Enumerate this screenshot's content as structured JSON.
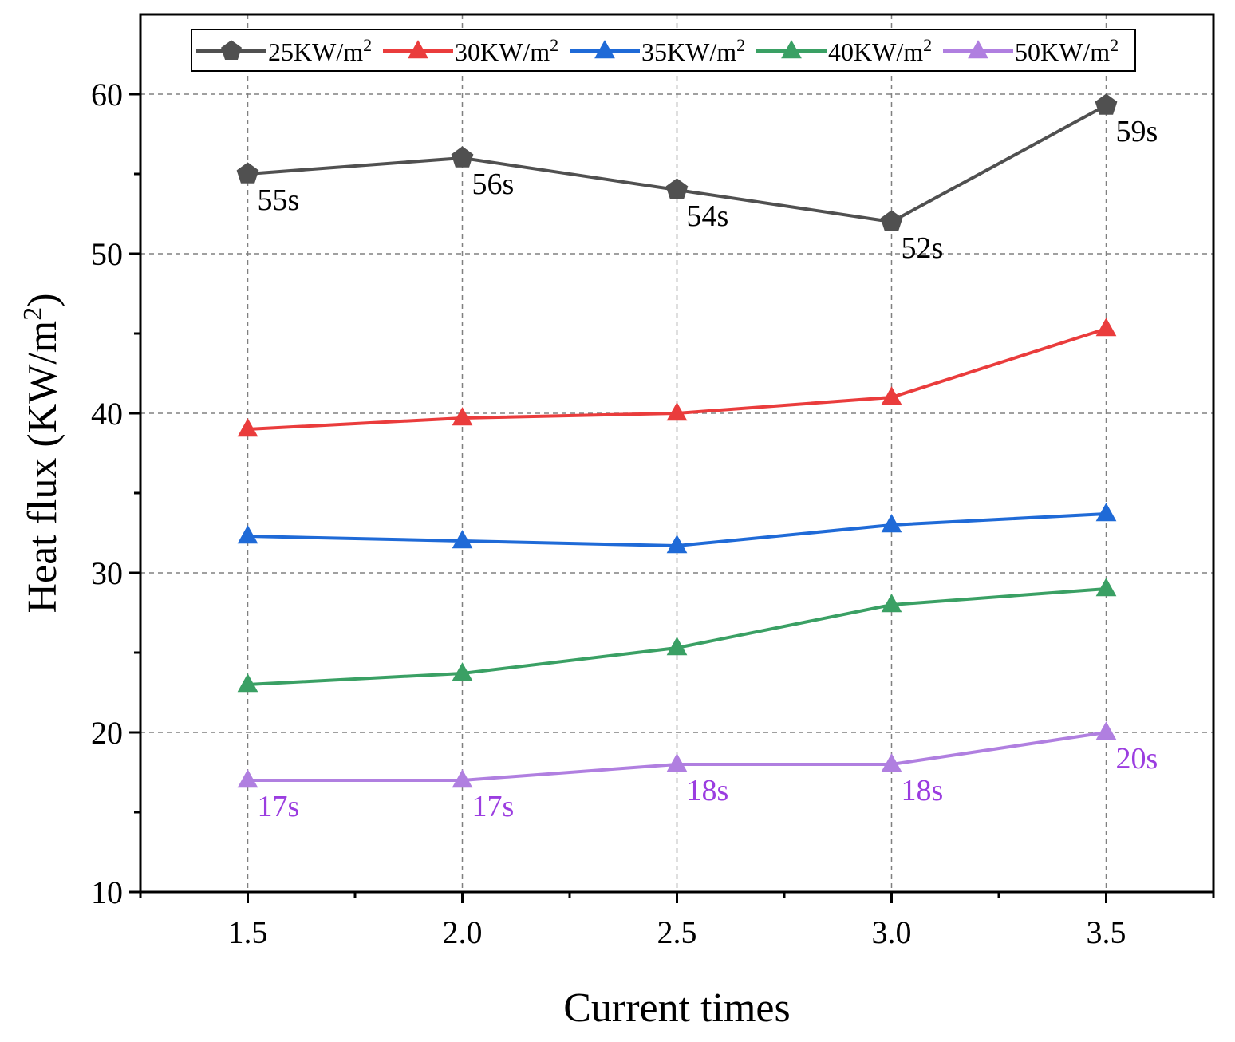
{
  "chart_data": {
    "type": "line",
    "xlabel": "Current times",
    "ylabel": "Heat flux (KW/m",
    "ylabel_sup": "2",
    "ylabel_close": ")",
    "x": [
      1.5,
      2.0,
      2.5,
      3.0,
      3.5
    ],
    "x_tick_labels": [
      "1.5",
      "2.0",
      "2.5",
      "3.0",
      "3.5"
    ],
    "y_tick_values": [
      10,
      20,
      30,
      40,
      50,
      60
    ],
    "y_tick_labels": [
      "10",
      "20",
      "30",
      "40",
      "50",
      "60"
    ],
    "xlim": [
      1.25,
      3.75
    ],
    "ylim": [
      10,
      65
    ],
    "grid": true,
    "legend_position": "top",
    "series": [
      {
        "name": "25KW/m",
        "sup": "2",
        "color": "#505050",
        "marker": "pentagon",
        "values": [
          55,
          56,
          54,
          52,
          59.3
        ],
        "labels": [
          "55s",
          "56s",
          "54s",
          "52s",
          "59s"
        ],
        "label_color": "#000000"
      },
      {
        "name": "30KW/m",
        "sup": "2",
        "color": "#ea3c3c",
        "marker": "triangle",
        "values": [
          39,
          39.7,
          40,
          41,
          45.3
        ],
        "labels": null
      },
      {
        "name": "35KW/m",
        "sup": "2",
        "color": "#1f6ad7",
        "marker": "triangle",
        "values": [
          32.3,
          32,
          31.7,
          33,
          33.7
        ],
        "labels": null
      },
      {
        "name": "40KW/m",
        "sup": "2",
        "color": "#3aa064",
        "marker": "triangle",
        "values": [
          23,
          23.7,
          25.3,
          28,
          29
        ],
        "labels": null
      },
      {
        "name": "50KW/m",
        "sup": "2",
        "color": "#b07fe0",
        "marker": "triangle",
        "values": [
          17,
          17,
          18,
          18,
          20
        ],
        "labels": [
          "17s",
          "17s",
          "18s",
          "18s",
          "20s"
        ],
        "label_color": "#9b3de0"
      }
    ]
  }
}
